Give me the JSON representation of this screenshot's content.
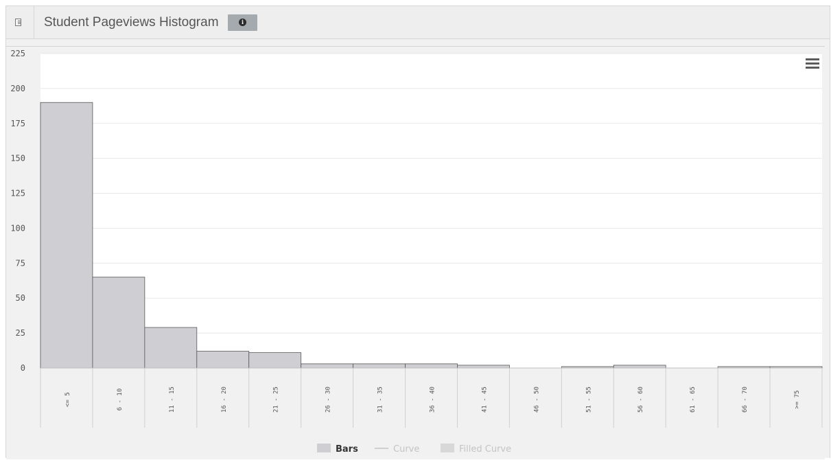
{
  "header": {
    "title": "Student Pageviews Histogram",
    "panel_icon": "panel-icon",
    "info_icon": "info-circle-icon"
  },
  "menu_icon": "hamburger-menu-icon",
  "chart_data": {
    "type": "bar",
    "title": "Student Pageviews Histogram",
    "xlabel": "",
    "ylabel": "",
    "categories": [
      "<= 5",
      "6 - 10",
      "11 - 15",
      "16 - 20",
      "21 - 25",
      "26 - 30",
      "31 - 35",
      "36 - 40",
      "41 - 45",
      "46 - 50",
      "51 - 55",
      "56 - 60",
      "61 - 65",
      "66 - 70",
      ">= 75"
    ],
    "values": [
      190,
      65,
      29,
      12,
      11,
      3,
      3,
      3,
      2,
      0,
      1,
      2,
      0,
      1,
      1
    ],
    "ylim": [
      0,
      225
    ],
    "yticks": [
      0,
      25,
      50,
      75,
      100,
      125,
      150,
      175,
      200,
      225
    ],
    "grid": true,
    "legend": {
      "position": "bottom",
      "items": [
        {
          "label": "Bars",
          "symbol": "box",
          "active": true
        },
        {
          "label": "Curve",
          "symbol": "line",
          "active": false
        },
        {
          "label": "Filled Curve",
          "symbol": "box",
          "active": false
        }
      ]
    },
    "colors": {
      "bar_fill": "#cfcfd3",
      "bar_stroke": "#555555",
      "grid": "#e8e8e8",
      "plot_bg": "#ffffff",
      "axis_text": "#555555",
      "legend_active": "#333333",
      "legend_inactive": "#c4c4c4"
    }
  }
}
